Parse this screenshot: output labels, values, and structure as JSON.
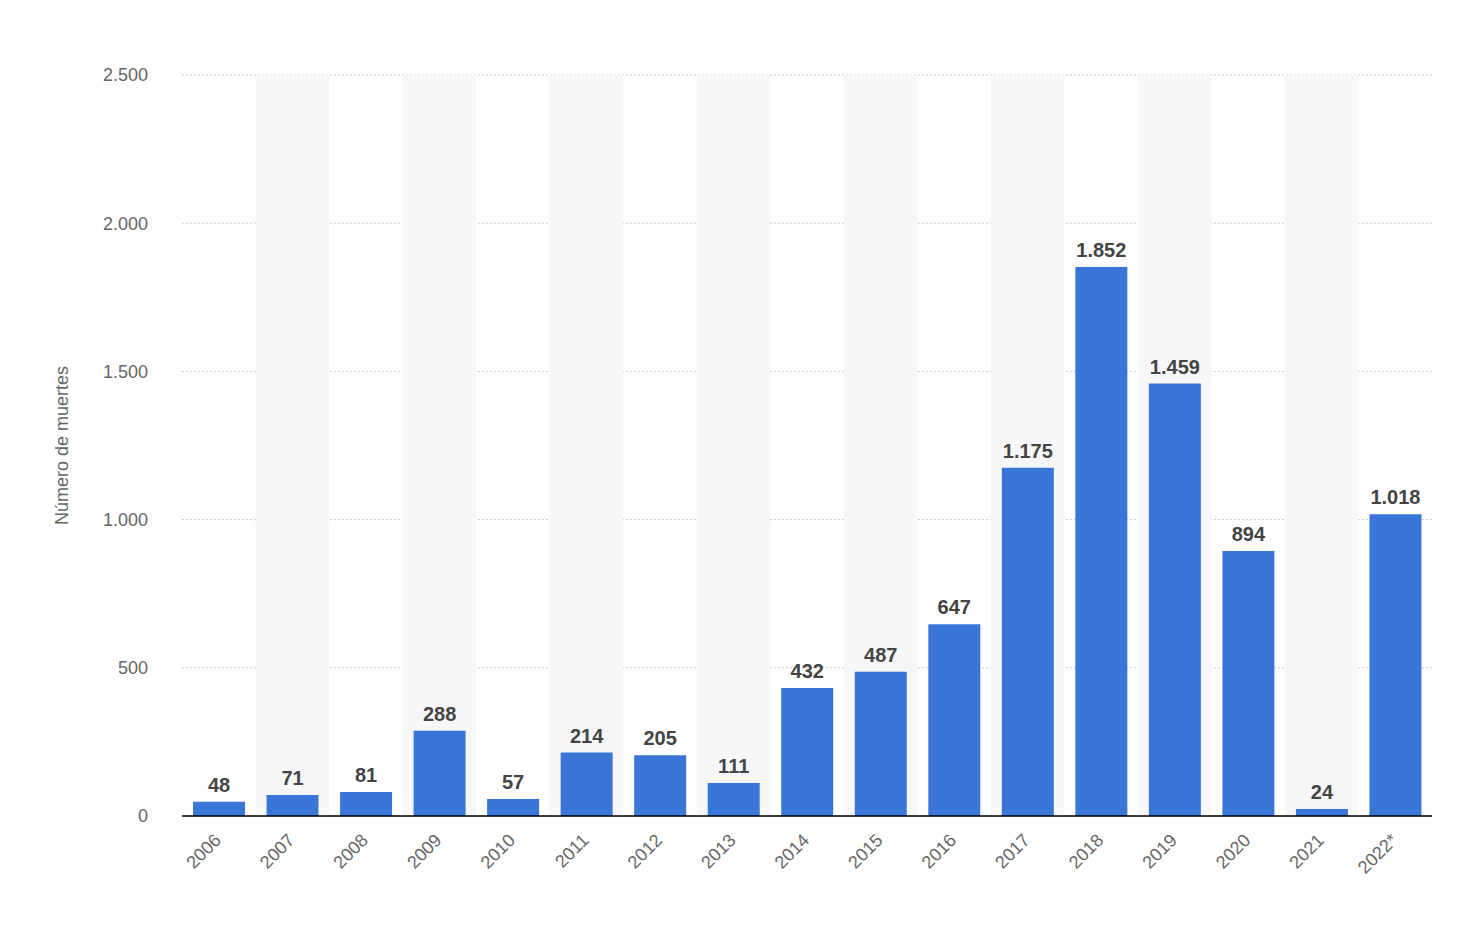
{
  "chart_data": {
    "type": "bar",
    "y_label": "Número de muertes",
    "categories": [
      "2006",
      "2007",
      "2008",
      "2009",
      "2010",
      "2011",
      "2012",
      "2013",
      "2014",
      "2015",
      "2016",
      "2017",
      "2018",
      "2019",
      "2020",
      "2021",
      "2022*"
    ],
    "values": [
      48,
      71,
      81,
      288,
      57,
      214,
      205,
      111,
      432,
      487,
      647,
      1175,
      1852,
      1459,
      894,
      24,
      1018
    ],
    "value_labels": [
      "48",
      "71",
      "81",
      "288",
      "57",
      "214",
      "205",
      "111",
      "432",
      "487",
      "647",
      "1.175",
      "1.852",
      "1.459",
      "894",
      "24",
      "1.018"
    ],
    "color": "#3a76d8",
    "ylim": [
      0,
      2500
    ],
    "yticks": [
      0,
      500,
      {
        "value": 1000,
        "label": "1.000"
      },
      {
        "value": 1500,
        "label": "1.500"
      },
      {
        "value": 2000,
        "label": "2.000"
      },
      {
        "value": 2500,
        "label": "2.500"
      }
    ],
    "grid": true,
    "data_labels": true
  }
}
